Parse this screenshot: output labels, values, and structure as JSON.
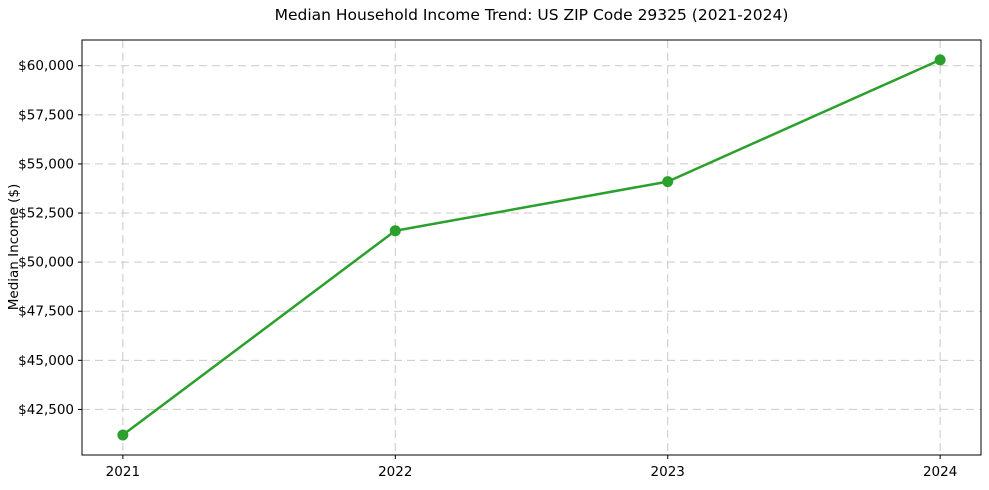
{
  "chart_data": {
    "type": "line",
    "title": "Median Household Income Trend: US ZIP Code 29325 (2021-2024)",
    "xlabel": "",
    "ylabel": "Median Income ($)",
    "x": [
      2021,
      2022,
      2023,
      2024
    ],
    "series": [
      {
        "name": "Median Household Income",
        "color": "#2ca02c",
        "marker": "circle",
        "values": [
          41200,
          51600,
          54100,
          60300
        ]
      }
    ],
    "xlim": [
      2020.85,
      2024.15
    ],
    "ylim": [
      40180,
      61310
    ],
    "xticks": [
      {
        "v": 2021,
        "label": "2021"
      },
      {
        "v": 2022,
        "label": "2022"
      },
      {
        "v": 2023,
        "label": "2023"
      },
      {
        "v": 2024,
        "label": "2024"
      }
    ],
    "yticks": [
      {
        "v": 42500,
        "label": "$42,500"
      },
      {
        "v": 45000,
        "label": "$45,000"
      },
      {
        "v": 47500,
        "label": "$47,500"
      },
      {
        "v": 50000,
        "label": "$50,000"
      },
      {
        "v": 52500,
        "label": "$52,500"
      },
      {
        "v": 55000,
        "label": "$55,000"
      },
      {
        "v": 57500,
        "label": "$57,500"
      },
      {
        "v": 60000,
        "label": "$60,000"
      }
    ],
    "grid": true,
    "grid_color": "#c9c9c9",
    "grid_style": "dashed",
    "legend": "none",
    "background": "#ffffff",
    "spine_color": "#000000"
  }
}
